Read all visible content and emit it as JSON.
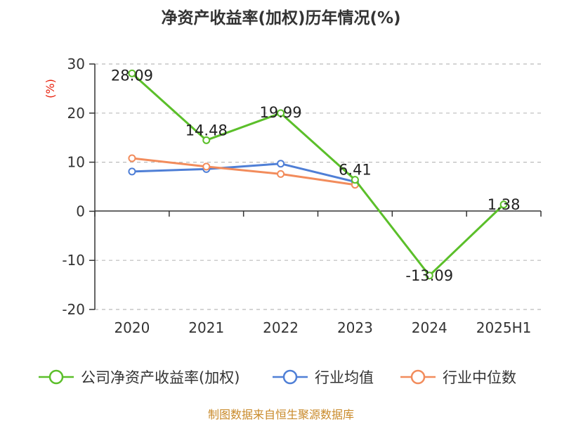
{
  "chart_data": {
    "type": "line",
    "title": "净资产收益率(加权)历年情况(%)",
    "ylabel": "(%)",
    "categories": [
      "2020",
      "2021",
      "2022",
      "2023",
      "2024",
      "2025H1"
    ],
    "ylim": [
      -20,
      30
    ],
    "yticks": [
      30,
      20,
      10,
      0,
      -10,
      -20
    ],
    "grid": true,
    "legend_position": "bottom",
    "series": [
      {
        "name": "公司净资产收益率(加权)",
        "color": "#5bbf2a",
        "values": [
          28.09,
          14.48,
          19.99,
          6.41,
          -13.09,
          1.38
        ],
        "labels": [
          "28.09",
          "14.48",
          "19.99",
          "6.41",
          "-13.09",
          "1.38"
        ]
      },
      {
        "name": "行业均值",
        "color": "#4f7fd6",
        "values": [
          8.1,
          8.6,
          9.7,
          6.0,
          null,
          null
        ]
      },
      {
        "name": "行业中位数",
        "color": "#f28c5c",
        "values": [
          10.8,
          9.1,
          7.6,
          5.4,
          null,
          null
        ]
      }
    ],
    "source": "制图数据来自恒生聚源数据库"
  }
}
